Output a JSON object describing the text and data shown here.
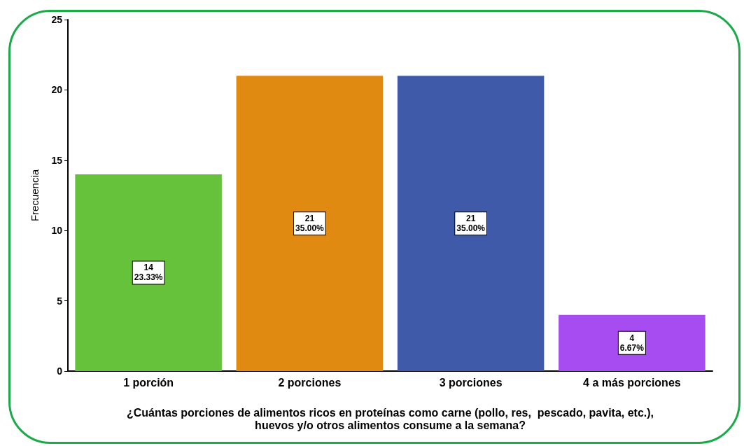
{
  "chart_data": {
    "type": "bar",
    "ylabel": "Frecuencia",
    "xlabel": "¿Cuántas porciones de alimentos ricos en proteínas como carne (pollo, res,  pescado, pavita, etc.),\nhuevos y/o otros alimentos consume a la semana?",
    "categories": [
      "1 porción",
      "2 porciones",
      "3 porciones",
      "4 a más porciones"
    ],
    "values": [
      14,
      21,
      21,
      4
    ],
    "colors": [
      "#66c23a",
      "#e08a12",
      "#3f5aa8",
      "#a64cf0"
    ],
    "value_labels": [
      "14\n23.33%",
      "21\n35.00%",
      "21\n35.00%",
      "4\n6.67%"
    ],
    "ylim": [
      0,
      25
    ],
    "yticks": [
      0,
      5,
      10,
      15,
      20,
      25
    ],
    "grid": false
  }
}
